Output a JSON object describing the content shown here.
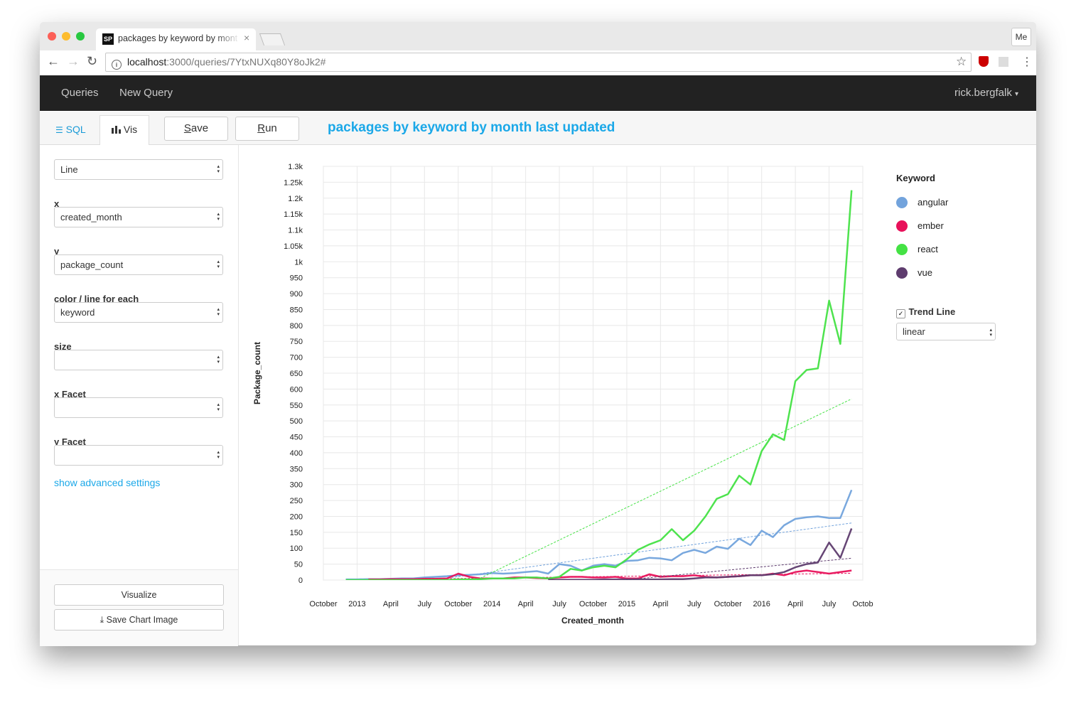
{
  "browser": {
    "tab_title": "packages by keyword by mont",
    "url_host": "localhost",
    "url_path": ":3000/queries/7YtxNUXq80Y8oJk2#",
    "profile": "Me"
  },
  "nav": {
    "items": [
      "Queries",
      "New Query"
    ],
    "user": "rick.bergfalk"
  },
  "toolbar": {
    "tabs": [
      "SQL",
      "Vis"
    ],
    "buttons": [
      "Save",
      "Run"
    ],
    "title": "packages by keyword by month last updated"
  },
  "settings": {
    "fields": [
      {
        "value": "Line"
      },
      {
        "label": "x",
        "value": "created_month"
      },
      {
        "label": "y",
        "value": "package_count"
      },
      {
        "label": "color / line for each",
        "value": "keyword"
      },
      {
        "label": "size"
      },
      {
        "label": "x Facet"
      },
      {
        "label": "y Facet"
      }
    ],
    "advanced_link": "show advanced settings",
    "buttons": [
      "Visualize",
      "Save Chart Image"
    ]
  },
  "chart_data": {
    "type": "line",
    "x_label": "Created_month",
    "y_label": "Package_count",
    "x": [
      "2012-12",
      "2013-01",
      "2013-02",
      "2013-03",
      "2013-04",
      "2013-05",
      "2013-06",
      "2013-07",
      "2013-08",
      "2013-09",
      "2013-10",
      "2013-11",
      "2013-12",
      "2014-01",
      "2014-02",
      "2014-03",
      "2014-04",
      "2014-05",
      "2014-06",
      "2014-07",
      "2014-08",
      "2014-09",
      "2014-10",
      "2014-11",
      "2014-12",
      "2015-01",
      "2015-02",
      "2015-03",
      "2015-04",
      "2015-05",
      "2015-06",
      "2015-07",
      "2015-08",
      "2015-09",
      "2015-10",
      "2015-11",
      "2015-12",
      "2016-01",
      "2016-02",
      "2016-03",
      "2016-04",
      "2016-05",
      "2016-06",
      "2016-07",
      "2016-08",
      "2016-09"
    ],
    "series": [
      {
        "name": "angular",
        "color": "#72a3dc",
        "values": [
          2,
          2,
          3,
          3,
          4,
          5,
          5,
          8,
          10,
          12,
          15,
          16,
          18,
          22,
          20,
          22,
          25,
          28,
          20,
          50,
          45,
          30,
          45,
          50,
          45,
          60,
          62,
          70,
          68,
          62,
          85,
          95,
          85,
          105,
          98,
          130,
          110,
          155,
          135,
          172,
          192,
          197,
          200,
          195,
          195,
          283
        ]
      },
      {
        "name": "ember",
        "color": "#e8115a",
        "values": [
          null,
          null,
          2,
          2,
          3,
          3,
          3,
          4,
          4,
          5,
          20,
          10,
          5,
          5,
          5,
          8,
          8,
          6,
          5,
          8,
          10,
          10,
          8,
          8,
          10,
          5,
          5,
          18,
          10,
          12,
          12,
          15,
          10,
          8,
          10,
          12,
          15,
          15,
          20,
          15,
          25,
          30,
          25,
          20,
          25,
          30
        ]
      },
      {
        "name": "react",
        "color": "#44e244",
        "values": [
          0,
          0,
          0,
          0,
          0,
          0,
          0,
          0,
          0,
          0,
          2,
          2,
          3,
          5,
          5,
          5,
          8,
          8,
          5,
          10,
          35,
          30,
          40,
          45,
          40,
          65,
          95,
          112,
          125,
          160,
          125,
          155,
          200,
          255,
          270,
          328,
          300,
          405,
          458,
          440,
          625,
          660,
          665,
          878,
          742,
          1225
        ]
      },
      {
        "name": "vue",
        "color": "#5e3c6e",
        "values": [
          null,
          null,
          null,
          null,
          null,
          null,
          null,
          null,
          null,
          null,
          null,
          null,
          null,
          null,
          null,
          null,
          null,
          null,
          1,
          1,
          1,
          1,
          1,
          2,
          2,
          2,
          2,
          2,
          2,
          3,
          3,
          5,
          8,
          8,
          10,
          12,
          15,
          15,
          18,
          25,
          40,
          50,
          55,
          118,
          70,
          162
        ]
      }
    ],
    "xlim": [
      "2012-10",
      "2016-10"
    ],
    "xticks": [
      {
        "value": "2012-10",
        "label": "October"
      },
      {
        "value": "2013-01",
        "label": "2013"
      },
      {
        "value": "2013-04",
        "label": "April"
      },
      {
        "value": "2013-07",
        "label": "July"
      },
      {
        "value": "2013-10",
        "label": "October"
      },
      {
        "value": "2014-01",
        "label": "2014"
      },
      {
        "value": "2014-04",
        "label": "April"
      },
      {
        "value": "2014-07",
        "label": "July"
      },
      {
        "value": "2014-10",
        "label": "October"
      },
      {
        "value": "2015-01",
        "label": "2015"
      },
      {
        "value": "2015-04",
        "label": "April"
      },
      {
        "value": "2015-07",
        "label": "July"
      },
      {
        "value": "2015-10",
        "label": "October"
      },
      {
        "value": "2016-01",
        "label": "2016"
      },
      {
        "value": "2016-04",
        "label": "April"
      },
      {
        "value": "2016-07",
        "label": "July"
      },
      {
        "value": "2016-10",
        "label": "Octob"
      }
    ],
    "ylim": [
      0,
      1300
    ],
    "yticks": [
      0,
      50,
      100,
      150,
      200,
      250,
      300,
      350,
      400,
      450,
      500,
      550,
      600,
      650,
      700,
      750,
      800,
      850,
      900,
      950,
      {
        "value": 1000,
        "label": "1k"
      },
      {
        "value": 1050,
        "label": "1.05k"
      },
      {
        "value": 1100,
        "label": "1.1k"
      },
      {
        "value": 1150,
        "label": "1.15k"
      },
      {
        "value": 1200,
        "label": "1.2k"
      },
      {
        "value": 1250,
        "label": "1.25k"
      },
      {
        "value": 1300,
        "label": "1.3k"
      }
    ],
    "grid": true,
    "legend": {
      "title": "Keyword",
      "position": "right"
    },
    "trend_line": {
      "label": "Trend Line",
      "enabled": true,
      "method": "linear"
    }
  }
}
